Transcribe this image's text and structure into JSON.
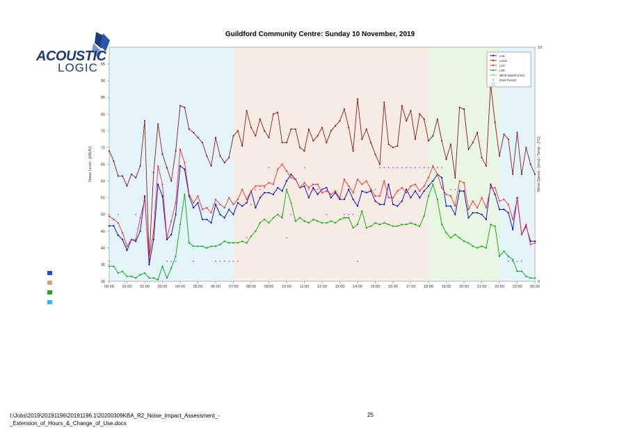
{
  "logo": {
    "line1": "ACOUSTIC",
    "line2": "LOGIC"
  },
  "footer": {
    "path_line1": "I:\\Jobs\\2019\\20191196\\20191196.1\\20200309KBA_R2_Noise_Impact_Assessment_-",
    "path_line2": "_Extension_of_Hours_&_Change_of_Use.docx",
    "page_number": "25"
  },
  "colors": {
    "leq": "#0000cc",
    "lmax": "#8b1a1a",
    "l10": "#ff2a2a",
    "l90": "#00aa00",
    "wind": "#66ee33",
    "rain": "#cc33ff",
    "night": "#e3f4fb",
    "day": "#f7ece3",
    "evening": "#e9f6e3"
  },
  "legend_markers": [
    {
      "color": "#1a4fd0"
    },
    {
      "color": "#d9a080"
    },
    {
      "color": "#22aa22"
    },
    {
      "color": "#33b8ee"
    }
  ],
  "chart_data": {
    "type": "line",
    "title": "Guildford Community Centre: Sunday 10 November, 2019",
    "ylabel": "Noise Level - [dB(A)]",
    "ylabel_right": "Wind Speed - [m/s] / Temp - [°C]",
    "ylim": [
      30,
      100
    ],
    "ylim_right": [
      0,
      10
    ],
    "yticks": [
      30,
      35,
      40,
      45,
      50,
      55,
      60,
      65,
      70,
      75,
      80,
      85,
      90,
      95
    ],
    "yticks_right": [
      0,
      10
    ],
    "xticks": [
      "00:00",
      "01:00",
      "02:00",
      "03:00",
      "04:00",
      "05:00",
      "06:00",
      "07:00",
      "08:00",
      "09:00",
      "10:00",
      "11:00",
      "12:00",
      "13:00",
      "14:00",
      "15:00",
      "16:00",
      "17:00",
      "18:00",
      "19:00",
      "20:00",
      "21:00",
      "22:00",
      "23:00",
      "00:00"
    ],
    "periods": [
      {
        "name": "night",
        "start": 0,
        "end": 7
      },
      {
        "name": "day",
        "start": 7,
        "end": 18
      },
      {
        "name": "evening",
        "start": 18,
        "end": 22
      },
      {
        "name": "night",
        "start": 22,
        "end": 24
      }
    ],
    "legend": [
      "Leq",
      "Lmax",
      "L10",
      "L90",
      "Wind Speed (m/s)",
      "Rain Period",
      ""
    ],
    "legend_position": "top-right",
    "grid": false,
    "interval_hours": 0.25,
    "series": [
      {
        "name": "Leq",
        "key": "leq",
        "values": [
          46.6,
          46.6,
          43.8,
          42.5,
          39.3,
          42.5,
          42.0,
          45.0,
          55.5,
          35.0,
          42.5,
          59.0,
          55.5,
          42.5,
          44.0,
          50.0,
          64.5,
          63.5,
          55.5,
          52.0,
          53.5,
          48.5,
          48.5,
          47.5,
          53.0,
          50.0,
          49.0,
          51.5,
          50.0,
          53.5,
          52.5,
          53.5,
          57.0,
          52.0,
          55.0,
          56.5,
          56.5,
          56.0,
          58.0,
          57.0,
          60.0,
          62.0,
          60.5,
          58.0,
          58.5,
          55.0,
          58.0,
          56.0,
          57.5,
          58.0,
          55.0,
          56.5,
          54.5,
          54.5,
          57.5,
          54.5,
          52.5,
          57.0,
          56.5,
          57.0,
          54.0,
          53.0,
          53.0,
          59.0,
          53.0,
          52.5,
          54.0,
          57.5,
          55.0,
          57.0,
          55.0,
          57.0,
          58.5,
          60.0,
          62.0,
          61.0,
          52.5,
          52.5,
          50.0,
          57.0,
          57.0,
          49.0,
          50.5,
          50.5,
          50.0,
          48.5,
          59.0,
          56.0,
          51.5,
          51.5,
          50.5,
          45.5,
          55.0,
          44.0,
          46.5,
          42.0,
          42.0
        ]
      },
      {
        "name": "Lmax",
        "key": "lmax",
        "values": [
          69.0,
          66.0,
          61.5,
          61.5,
          58.5,
          62.0,
          61.0,
          64.5,
          78.0,
          36.5,
          62.5,
          77.0,
          68.0,
          64.0,
          60.0,
          69.0,
          82.5,
          82.0,
          75.5,
          74.5,
          73.0,
          71.5,
          67.5,
          64.5,
          73.0,
          67.5,
          65.5,
          67.0,
          73.5,
          75.0,
          70.5,
          81.0,
          76.0,
          73.5,
          78.5,
          75.0,
          73.0,
          80.0,
          80.5,
          71.5,
          71.5,
          75.5,
          75.5,
          70.0,
          69.0,
          75.5,
          72.0,
          73.5,
          76.0,
          71.5,
          75.0,
          76.5,
          78.0,
          81.5,
          76.0,
          69.0,
          84.5,
          72.5,
          75.5,
          71.5,
          68.0,
          65.0,
          83.5,
          71.0,
          70.0,
          70.5,
          82.5,
          78.0,
          81.0,
          72.5,
          80.0,
          78.5,
          72.0,
          73.5,
          78.5,
          72.0,
          66.5,
          71.0,
          61.0,
          82.0,
          81.5,
          69.5,
          71.5,
          74.5,
          67.0,
          64.5,
          89.0,
          77.5,
          67.5,
          74.0,
          72.5,
          62.0,
          74.5,
          62.0,
          70.0,
          65.0,
          62.0
        ]
      },
      {
        "name": "L10",
        "key": "l10",
        "values": [
          49.5,
          48.5,
          47.5,
          44.5,
          40.5,
          42.5,
          42.5,
          49.0,
          54.5,
          37.0,
          45.0,
          64.5,
          59.0,
          43.0,
          48.0,
          53.5,
          69.5,
          65.5,
          56.0,
          53.5,
          55.5,
          51.5,
          52.0,
          50.5,
          54.5,
          53.0,
          52.0,
          55.0,
          53.0,
          54.5,
          57.5,
          54.5,
          57.0,
          58.5,
          58.5,
          58.5,
          59.5,
          59.0,
          63.5,
          65.0,
          63.0,
          61.0,
          60.5,
          58.0,
          59.5,
          58.0,
          59.0,
          59.0,
          56.5,
          57.0,
          56.0,
          57.0,
          55.0,
          60.5,
          58.5,
          56.5,
          60.5,
          59.0,
          60.0,
          57.5,
          55.5,
          55.5,
          60.0,
          55.0,
          55.0,
          57.0,
          58.0,
          56.5,
          58.5,
          59.0,
          57.0,
          58.5,
          61.0,
          64.5,
          62.0,
          58.0,
          56.0,
          55.5,
          52.5,
          60.0,
          59.5,
          51.5,
          54.0,
          52.0,
          55.0,
          52.0,
          58.0,
          58.0,
          54.0,
          54.5,
          53.0,
          48.5,
          54.5,
          44.0,
          47.0,
          41.0,
          41.5
        ]
      },
      {
        "name": "L90",
        "key": "l90",
        "values": [
          34.5,
          34.5,
          32.5,
          33.0,
          31.5,
          31.5,
          31.0,
          32.0,
          32.5,
          31.0,
          31.0,
          30.5,
          34.5,
          31.0,
          34.0,
          37.5,
          47.0,
          56.0,
          41.5,
          40.5,
          40.5,
          40.5,
          40.0,
          40.5,
          40.5,
          41.0,
          42.0,
          41.5,
          41.5,
          41.5,
          42.0,
          41.5,
          43.5,
          45.0,
          47.5,
          48.5,
          47.5,
          49.0,
          50.0,
          49.0,
          57.5,
          53.5,
          48.0,
          49.0,
          48.0,
          47.5,
          48.5,
          48.0,
          47.5,
          47.5,
          48.0,
          47.5,
          48.5,
          49.0,
          49.0,
          46.0,
          47.0,
          51.0,
          46.0,
          46.5,
          47.5,
          47.0,
          47.5,
          47.0,
          46.5,
          46.5,
          47.0,
          47.0,
          47.5,
          47.0,
          46.5,
          49.5,
          55.5,
          59.0,
          54.5,
          47.0,
          44.5,
          43.0,
          44.0,
          43.0,
          42.0,
          41.5,
          40.5,
          40.0,
          40.5,
          40.0,
          47.0,
          46.5,
          37.5,
          39.0,
          37.5,
          36.5,
          33.0,
          33.0,
          31.5,
          31.0,
          31.0
        ]
      },
      {
        "name": "Wind Speed (m/s)",
        "key": "wind",
        "values": []
      },
      {
        "name": "Rain Period",
        "key": "rain",
        "values": [
          36.0,
          null,
          50.0,
          null,
          null,
          null,
          50.0,
          null,
          null,
          null,
          null,
          null,
          null,
          36.0,
          36.0,
          36.0,
          null,
          null,
          null,
          36.0,
          null,
          null,
          null,
          null,
          36.0,
          36.0,
          36.0,
          36.0,
          36.0,
          36.0,
          null,
          43.0,
          53.0,
          57.5,
          57.5,
          58.0,
          64.0,
          59.0,
          50.0,
          50.0,
          43.0,
          50.0,
          null,
          null,
          64.0,
          57.5,
          57.5,
          57.5,
          57.5,
          50.0,
          null,
          null,
          null,
          50.0,
          50.0,
          50.0,
          36.0,
          null,
          null,
          null,
          57.5,
          64.0,
          64.0,
          64.0,
          64.0,
          64.0,
          64.0,
          64.0,
          64.0,
          64.0,
          64.0,
          64.0,
          64.0,
          64.0,
          64.0,
          64.0,
          null,
          57.5,
          57.5,
          57.5,
          null,
          null,
          null,
          null,
          null,
          null,
          null,
          null,
          null,
          null,
          36.0,
          36.0,
          36.0,
          36.0,
          null,
          null,
          null
        ]
      }
    ],
    "legend_items": [
      "Leq",
      "Lmax",
      "L10",
      "L90",
      "Wind Speed (m/s)",
      "Rain Period"
    ]
  }
}
